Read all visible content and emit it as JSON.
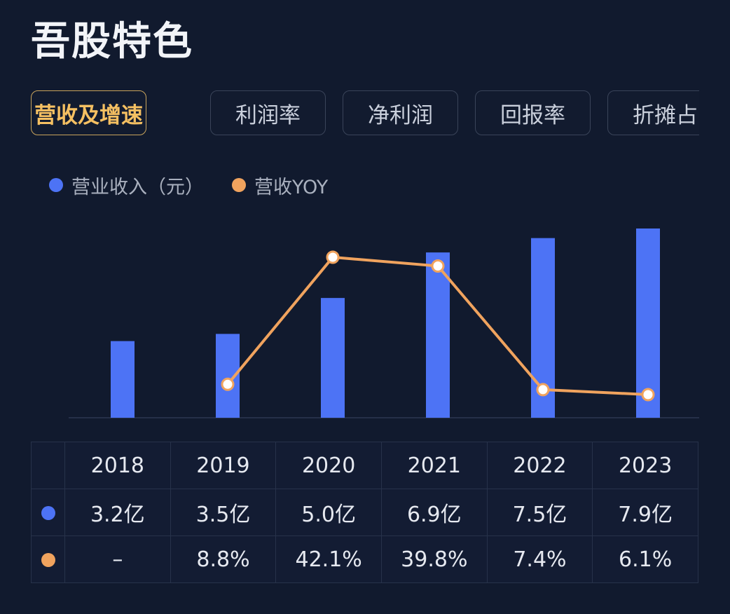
{
  "title": "吾股特色",
  "tabs": [
    {
      "label": "营收及增速",
      "active": true
    },
    {
      "label": "利润率",
      "active": false
    },
    {
      "label": "净利润",
      "active": false
    },
    {
      "label": "回报率",
      "active": false
    },
    {
      "label": "折摊占",
      "active": false
    }
  ],
  "legend": {
    "revenue_label": "营业收入（元）",
    "yoy_label": "营收YOY"
  },
  "colors": {
    "bar": "#4d73f5",
    "line": "#f0a35e",
    "active_tab_text": "#f5c062",
    "active_tab_border": "#c9a45c"
  },
  "chart_data": {
    "type": "bar",
    "categories": [
      "2018",
      "2019",
      "2020",
      "2021",
      "2022",
      "2023"
    ],
    "series": [
      {
        "name": "营业收入（元）",
        "type": "bar",
        "unit": "亿",
        "values": [
          3.2,
          3.5,
          5.0,
          6.9,
          7.5,
          7.9
        ]
      },
      {
        "name": "营收YOY",
        "type": "line",
        "unit": "%",
        "values": [
          null,
          8.8,
          42.1,
          39.8,
          7.4,
          6.1
        ]
      }
    ],
    "xlabel": "",
    "ylabel": "",
    "grid": false
  },
  "table": {
    "header": [
      "2018",
      "2019",
      "2020",
      "2021",
      "2022",
      "2023"
    ],
    "revenue_row": [
      "3.2亿",
      "3.5亿",
      "5.0亿",
      "6.9亿",
      "7.5亿",
      "7.9亿"
    ],
    "yoy_row": [
      "–",
      "8.8%",
      "42.1%",
      "39.8%",
      "7.4%",
      "6.1%"
    ]
  }
}
